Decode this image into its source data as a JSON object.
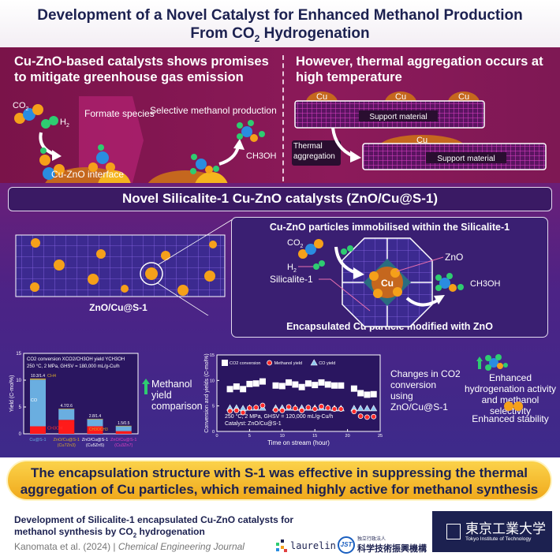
{
  "title": {
    "line1": "Development of a Novel Catalyst for Enhanced Methanol Production",
    "line2_prefix": "From CO",
    "line2_sub": "2",
    "line2_suffix": " Hydrogenation"
  },
  "section1": {
    "left_heading": "Cu-ZnO-based catalysts shows promises to mitigate greenhouse gas emission",
    "co2": "CO",
    "co2_sub": "2",
    "h2": "H",
    "h2_sub": "2",
    "formate": "Formate species",
    "selective": "Selective methanol production",
    "ch3oh": "CH3OH",
    "interface": "Cu-ZnO interface",
    "right_heading": "However, thermal aggregation occurs at high temperature",
    "cu": "Cu",
    "support": "Support material",
    "thermal": "Thermal aggregation"
  },
  "band": "Novel Silicalite-1 Cu-ZnO catalysts (ZnO/Cu@S-1)",
  "middle": {
    "left_label": "ZnO/Cu@S-1",
    "panel_title": "Cu-ZnO particles immobilised within the Silicalite-1",
    "co2": "CO",
    "co2_sub": "2",
    "h2": "H",
    "h2_sub": "2",
    "silicalite": "Silicalite-1",
    "zno": "ZnO",
    "cu": "Cu",
    "ch3oh": "CH3OH",
    "panel_bottom": "Encapsulated Cu particle modified with ZnO"
  },
  "colors": {
    "accent_yellow": "#f5b82e",
    "navy": "#1c2150",
    "methanol_red": "#ff1a1a",
    "co_blue": "#6aaee0",
    "ch4_gold": "#d4a82a",
    "green_arrow": "#2ecc71"
  },
  "chart_data": [
    {
      "type": "bar",
      "stacked": true,
      "legend_text": "CO2 conversion XCO2/CH3OH yield YCH3OH",
      "condition": "250 °C, 2 MPa, GHSV = 180,000 mL/g-Cu/h",
      "ylabel": "Yield (C-mol%)",
      "ylim": [
        0,
        15
      ],
      "yticks": [
        0,
        5,
        10,
        15
      ],
      "categories": [
        "Cu@S-1",
        "ZnO/Cu@S-1 (Cu7Zn3)",
        "ZnO/Cu@S-1 (Cu5Zn5)",
        "ZnO/Cu@S-1 (Cu3Zn7)"
      ],
      "category_colors": [
        "#6aaee0",
        "#d4a82a",
        "#ffffff",
        "#e040c0"
      ],
      "totals": [
        10.3,
        4.7,
        2.8,
        1.5
      ],
      "data_labels": [
        "10.3/1.4",
        "4.7/2.6",
        "2.8/1.4",
        "1.5/0.5"
      ],
      "series": [
        {
          "name": "CH3OH",
          "values": [
            1.4,
            2.6,
            1.4,
            0.5
          ],
          "color": "#ff1a1a"
        },
        {
          "name": "CO",
          "values": [
            8.7,
            2.0,
            1.3,
            0.9
          ],
          "color": "#6aaee0"
        },
        {
          "name": "CH4",
          "values": [
            0.2,
            0.1,
            0.1,
            0.1
          ],
          "color": "#d4a82a"
        }
      ],
      "annotations": [
        "CH4",
        "CO",
        "CH3OH",
        "CH3OCH3"
      ]
    },
    {
      "type": "scatter",
      "xlabel": "Time on stream (hour)",
      "ylabel": "Conversion and yields (C-mol%)",
      "xlim": [
        0,
        25
      ],
      "ylim": [
        0,
        15
      ],
      "xticks": [
        0,
        5,
        10,
        15,
        20,
        25
      ],
      "yticks": [
        0,
        5,
        10,
        15
      ],
      "condition1": "250 °C, 2 MPa, GHSV = 120,000 mL/g-Cu/h",
      "condition2": "Catalyst: ZnO/Cu@S-1",
      "legend_placement": "top-left",
      "x": [
        2,
        3,
        4,
        5,
        6,
        7,
        9,
        10,
        11,
        12,
        13,
        14,
        15,
        16,
        17,
        18,
        19,
        21,
        22,
        23,
        24
      ],
      "series": [
        {
          "name": "CO2 conversion",
          "marker": "square",
          "color": "#ffffff",
          "values": [
            8.3,
            8.8,
            8.3,
            9.3,
            9.4,
            9.8,
            9.0,
            8.9,
            9.6,
            9.2,
            8.7,
            9.4,
            9.1,
            9.6,
            9.2,
            9.0,
            9.0,
            8.4,
            7.5,
            7.2,
            7.3
          ]
        },
        {
          "name": "Methanol yield",
          "marker": "circle",
          "color": "#ff2a2a",
          "values": [
            4.0,
            4.1,
            3.7,
            4.6,
            4.7,
            5.1,
            4.2,
            4.1,
            4.8,
            4.5,
            4.1,
            4.7,
            4.4,
            4.9,
            4.6,
            4.4,
            4.4,
            3.9,
            3.0,
            2.8,
            2.9
          ]
        },
        {
          "name": "CO yield",
          "marker": "triangle",
          "color": "#8ec8f0",
          "values": [
            4.6,
            4.6,
            4.5,
            4.6,
            4.6,
            4.6,
            4.6,
            4.6,
            4.6,
            4.6,
            4.6,
            4.6,
            4.6,
            4.6,
            4.6,
            4.5,
            4.5,
            4.5,
            4.5,
            4.5,
            4.5
          ]
        }
      ]
    }
  ],
  "side": {
    "methanol_cmp": "Methanol yield comparison",
    "changes": "Changes in CO2 conversion using ZnO/Cu@S-1",
    "enhanced_activity": "Enhanced hydrogenation activity and methanol selectivity",
    "enhanced_stability": "Enhanced stability"
  },
  "banner": {
    "line1": "The encapsulation structure with S-1 was effective in suppressing the thermal",
    "line2": "aggregation of Cu particles, which remained highly active for methanol synthesis"
  },
  "footer": {
    "paper_line1": "Development of Silicalite-1 encapsulated Cu-ZnO catalysts for",
    "paper_line2_prefix": "methanol synthesis by CO",
    "paper_line2_sub": "2",
    "paper_line2_suffix": " hydrogenation",
    "authors": "Kanomata et al. (2024)",
    "sep": " | ",
    "journal": "Chemical Engineering Journal",
    "logo_laurelin": "laurelin",
    "logo_jst": "JST",
    "logo_jst_jp": "科学技術振興機構",
    "logo_jst_small": "独立行政法人",
    "logo_tokyotech_jp": "東京工業大学",
    "logo_tokyotech_en": "Tokyo Institute of Technology"
  }
}
